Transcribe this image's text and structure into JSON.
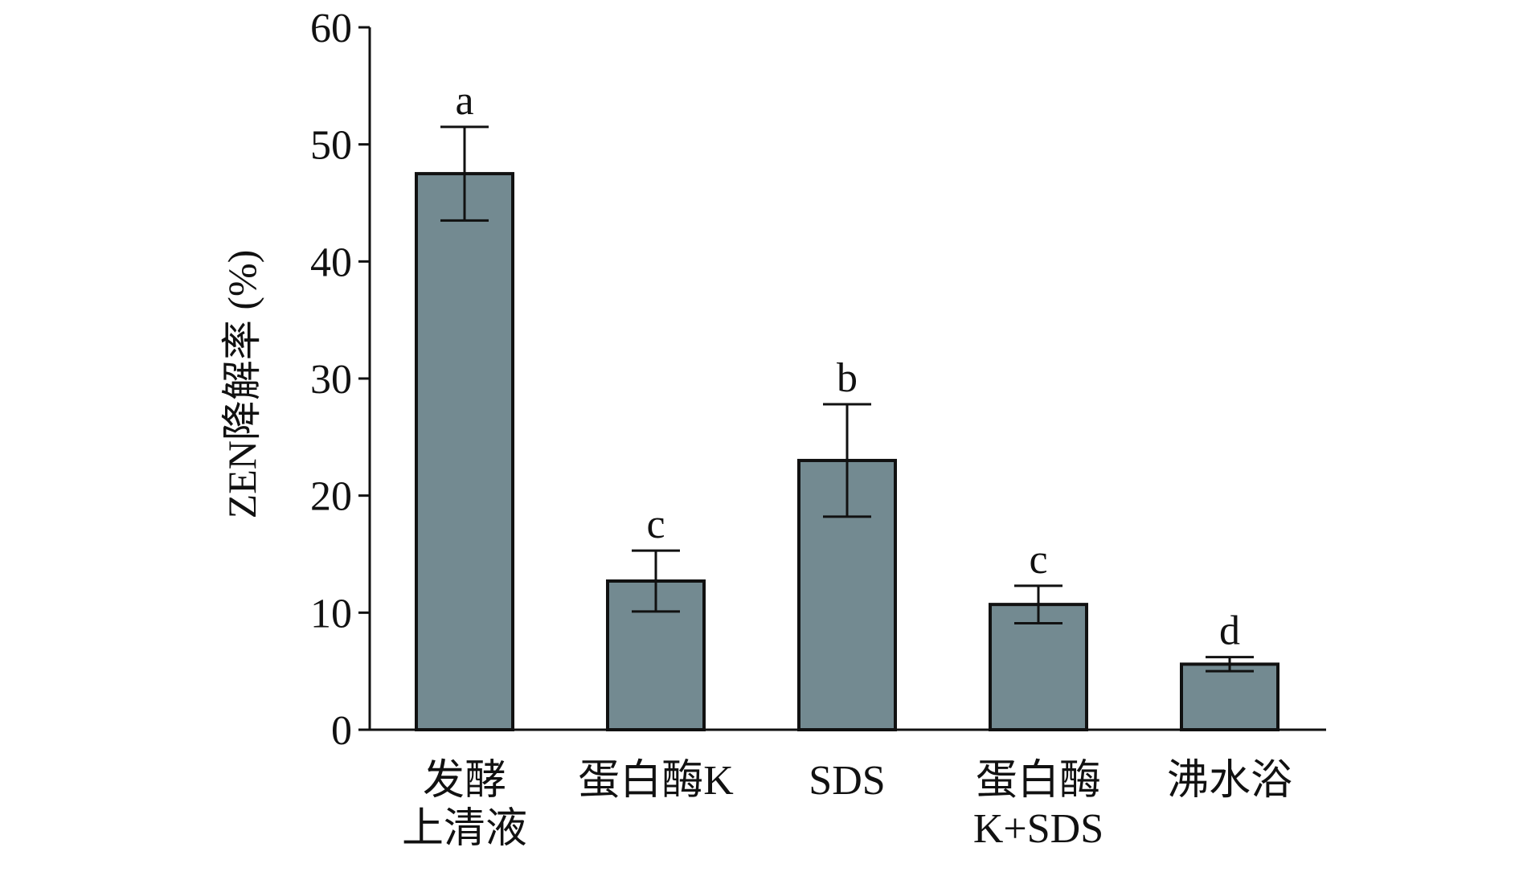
{
  "chart_data": {
    "type": "bar",
    "categories": [
      [
        "发酵",
        "上清液"
      ],
      [
        "蛋白酶K"
      ],
      [
        "SDS"
      ],
      [
        "蛋白酶",
        "K+SDS"
      ],
      [
        "沸水浴"
      ]
    ],
    "values": [
      47.5,
      12.7,
      23.0,
      10.7,
      5.6
    ],
    "errors": [
      4.0,
      2.6,
      4.8,
      1.6,
      0.6
    ],
    "significance_letters": [
      "a",
      "c",
      "b",
      "c",
      "d"
    ],
    "ylabel": "ZEN降解率 (%)",
    "xlabel": "",
    "ylim": [
      0,
      60
    ],
    "yticks": [
      0,
      10,
      20,
      30,
      40,
      50,
      60
    ],
    "grid": false,
    "legend": "none",
    "colors": {
      "bar": "#738a91",
      "outline": "#111111"
    }
  }
}
